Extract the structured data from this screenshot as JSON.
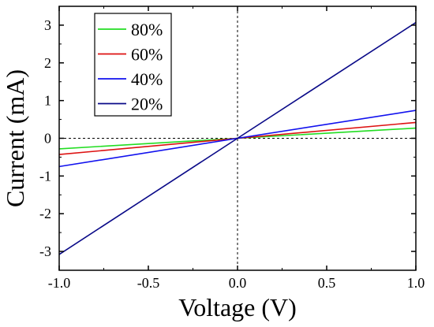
{
  "chart_data": {
    "type": "line",
    "title": "",
    "xlabel": "Voltage (V)",
    "ylabel": "Current (mA)",
    "xlim": [
      -1.0,
      1.0
    ],
    "ylim": [
      -3.5,
      3.5
    ],
    "x_ticks": [
      -1.0,
      -0.5,
      0.0,
      0.5,
      1.0
    ],
    "x_tick_labels": [
      "-1.0",
      "-0.5",
      "0.0",
      "0.5",
      "1.0"
    ],
    "y_ticks": [
      -3,
      -2,
      -1,
      0,
      1,
      2,
      3
    ],
    "y_tick_labels": [
      "-3",
      "-2",
      "-1",
      "0",
      "1",
      "2",
      "3"
    ],
    "grid": false,
    "reference_lines": "dashed lines at x=0 and y=0",
    "legend_position": "top-left",
    "series": [
      {
        "name": "80%",
        "color": "#22dd22",
        "x": [
          -1.0,
          0.0,
          1.0
        ],
        "y": [
          -0.28,
          0.0,
          0.27
        ]
      },
      {
        "name": "60%",
        "color": "#dd1111",
        "x": [
          -1.0,
          0.0,
          1.0
        ],
        "y": [
          -0.43,
          0.0,
          0.42
        ]
      },
      {
        "name": "40%",
        "color": "#1111ee",
        "x": [
          -1.0,
          0.0,
          1.0
        ],
        "y": [
          -0.75,
          0.0,
          0.74
        ]
      },
      {
        "name": "20%",
        "color": "#0a0a88",
        "x": [
          -1.0,
          0.0,
          1.0
        ],
        "y": [
          -3.08,
          0.0,
          3.07
        ]
      }
    ]
  }
}
